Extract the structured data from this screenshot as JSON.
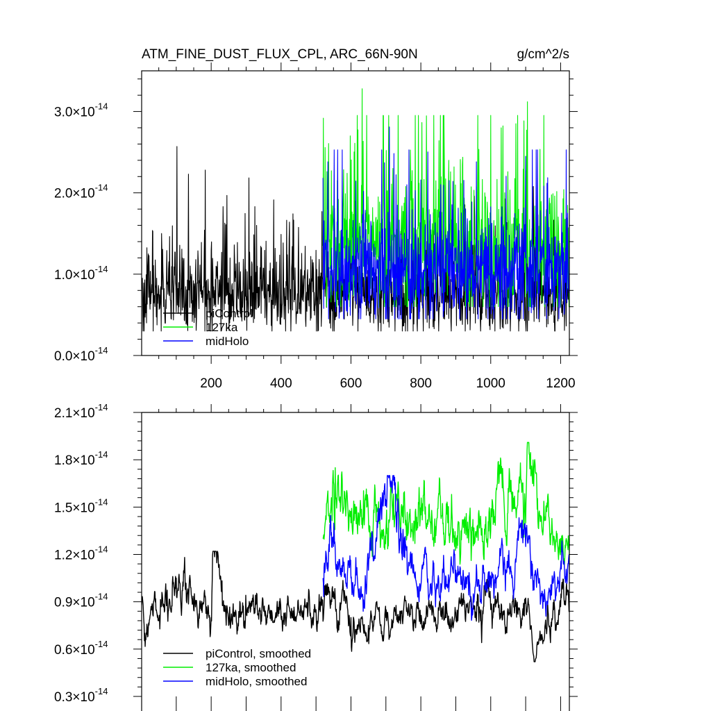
{
  "chart_data": [
    {
      "type": "line",
      "title": "ATM_FINE_DUST_FLUX_CPL, ARC_66N-90N",
      "units": "g/cm^2/s",
      "xlim": [
        1,
        1225
      ],
      "ylim": [
        0.0,
        3.5e-14
      ],
      "x_ticks": [
        200,
        400,
        600,
        800,
        1000,
        1200
      ],
      "x_tick_labels": [
        "200",
        "400",
        "600",
        "800",
        "1000",
        "1200"
      ],
      "y_ticks": [
        {
          "value": 0.0,
          "mantissa": "0.0",
          "exponent": "-14"
        },
        {
          "value": 1e-14,
          "mantissa": "1.0",
          "exponent": "-14"
        },
        {
          "value": 2e-14,
          "mantissa": "2.0",
          "exponent": "-14"
        },
        {
          "value": 3e-14,
          "mantissa": "3.0",
          "exponent": "-14"
        }
      ],
      "legend_position": "bottom-left",
      "series": [
        {
          "name": "piControl",
          "color": "#000000",
          "x_start": 1,
          "x_end": 1225,
          "mean": 7.6e-15,
          "min": 3e-15,
          "max": 2.57e-14,
          "peaks": [
            [
              102,
              2.57e-14
            ],
            [
              183,
              2.28e-14
            ],
            [
              135,
              2.23e-14
            ],
            [
              58,
              1.5e-14
            ],
            [
              330,
              1.6e-14
            ],
            [
              600,
              1.5e-14
            ]
          ]
        },
        {
          "name": "127ka",
          "color": "#00ee00",
          "x_start": 520,
          "x_end": 1225,
          "mean": 1.35e-14,
          "min": 6e-15,
          "max": 3.28e-14,
          "peaks": [
            [
              632,
              3.28e-14
            ],
            [
              1105,
              3.12e-14
            ],
            [
              693,
              2.95e-14
            ],
            [
              1030,
              2.8e-14
            ],
            [
              1072,
              2.85e-14
            ],
            [
              598,
              2.7e-14
            ],
            [
              720,
              2.3e-14
            ],
            [
              880,
              2.4e-14
            ]
          ]
        },
        {
          "name": "midHolo",
          "color": "#0000ff",
          "x_start": 520,
          "x_end": 1225,
          "mean": 1.05e-14,
          "min": 4.5e-15,
          "max": 2.81e-14,
          "peaks": [
            [
              710,
              2.81e-14
            ],
            [
              1100,
              2.45e-14
            ],
            [
              760,
              2.1e-14
            ],
            [
              1220,
              1.75e-14
            ]
          ]
        }
      ],
      "legend_entries": [
        "piControl",
        "127ka",
        "midHolo"
      ]
    },
    {
      "type": "line",
      "title": "",
      "xlim": [
        1,
        1225
      ],
      "ylim": [
        3e-15,
        2.1e-14
      ],
      "x_ticks": [
        200,
        400,
        600,
        800,
        1000,
        1200
      ],
      "y_ticks": [
        {
          "value": 3e-15,
          "mantissa": "0.3",
          "exponent": "-14"
        },
        {
          "value": 6e-15,
          "mantissa": "0.6",
          "exponent": "-14"
        },
        {
          "value": 9e-15,
          "mantissa": "0.9",
          "exponent": "-14"
        },
        {
          "value": 1.2e-14,
          "mantissa": "1.2",
          "exponent": "-14"
        },
        {
          "value": 1.5e-14,
          "mantissa": "1.5",
          "exponent": "-14"
        },
        {
          "value": 1.8e-14,
          "mantissa": "1.8",
          "exponent": "-14"
        },
        {
          "value": 2.1e-14,
          "mantissa": "2.1",
          "exponent": "-14"
        }
      ],
      "legend_position": "bottom-left",
      "series": [
        {
          "name": "piControl, smoothed",
          "color": "#000000",
          "x_start": 1,
          "x_end": 1225,
          "anchors": [
            [
              1,
              8.8e-15
            ],
            [
              10,
              7e-15
            ],
            [
              100,
              1.05e-14
            ],
            [
              200,
              8e-15
            ],
            [
              205,
              1.22e-14
            ],
            [
              250,
              7.5e-15
            ],
            [
              300,
              8.5e-15
            ],
            [
              400,
              8e-15
            ],
            [
              500,
              8.5e-15
            ],
            [
              530,
              1e-14
            ],
            [
              600,
              8e-15
            ],
            [
              650,
              7.5e-15
            ],
            [
              700,
              8e-15
            ],
            [
              800,
              8e-15
            ],
            [
              900,
              8.3e-15
            ],
            [
              960,
              9e-15
            ],
            [
              1000,
              8.5e-15
            ],
            [
              1050,
              8.5e-15
            ],
            [
              1110,
              8.5e-15
            ],
            [
              1125,
              5.2e-15
            ],
            [
              1180,
              8.5e-15
            ],
            [
              1225,
              9.5e-15
            ]
          ],
          "min": 5.2e-15,
          "max": 1.22e-14
        },
        {
          "name": "127ka, smoothed",
          "color": "#00ee00",
          "x_start": 520,
          "x_end": 1225,
          "anchors": [
            [
              520,
              1.3e-14
            ],
            [
              545,
              1.5e-14
            ],
            [
              555,
              1.75e-14
            ],
            [
              600,
              1.4e-14
            ],
            [
              700,
              1.35e-14
            ],
            [
              750,
              1.4e-14
            ],
            [
              800,
              1.45e-14
            ],
            [
              880,
              1.32e-14
            ],
            [
              1000,
              1.35e-14
            ],
            [
              1020,
              1.73e-14
            ],
            [
              1100,
              1.4e-14
            ],
            [
              1105,
              1.91e-14
            ],
            [
              1150,
              1.35e-14
            ],
            [
              1225,
              1.2e-14
            ]
          ],
          "min": 1.05e-14,
          "max": 1.91e-14
        },
        {
          "name": "midHolo, smoothed",
          "color": "#0000ff",
          "x_start": 520,
          "x_end": 1225,
          "anchors": [
            [
              520,
              1.05e-14
            ],
            [
              550,
              1.25e-14
            ],
            [
              600,
              1.05e-14
            ],
            [
              650,
              1.1e-14
            ],
            [
              710,
              1.7e-14
            ],
            [
              760,
              1.25e-14
            ],
            [
              800,
              1e-14
            ],
            [
              900,
              1.1e-14
            ],
            [
              950,
              9.5e-15
            ],
            [
              1000,
              1.05e-14
            ],
            [
              1100,
              1.25e-14
            ],
            [
              1150,
              9.5e-15
            ],
            [
              1225,
              1.08e-14
            ]
          ],
          "min": 7.8e-15,
          "max": 1.7e-14
        }
      ],
      "legend_entries": [
        "piControl, smoothed",
        "127ka, smoothed",
        "midHolo, smoothed"
      ]
    }
  ]
}
